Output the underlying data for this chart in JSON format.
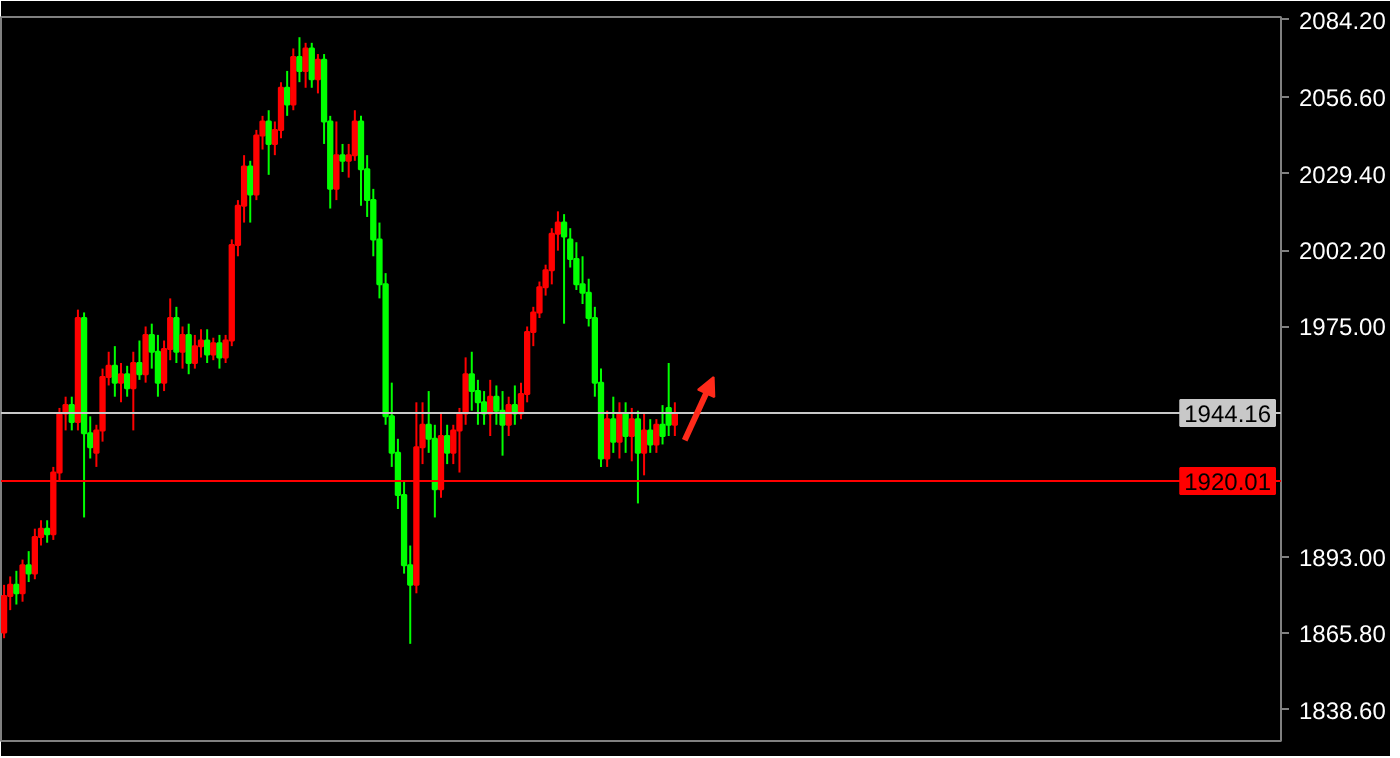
{
  "chart_data": {
    "type": "candlestick",
    "categories": [
      null,
      null,
      null,
      null,
      null,
      null,
      null,
      null,
      null,
      null,
      null,
      null,
      null,
      null,
      null,
      null,
      null,
      null,
      null,
      null,
      null,
      null,
      null,
      null,
      null,
      null,
      null,
      null,
      null,
      null,
      null,
      null,
      null,
      null,
      null,
      null,
      null,
      null,
      null,
      null,
      null,
      null,
      null,
      null,
      null,
      null,
      null,
      null,
      null,
      null,
      null,
      null,
      null,
      null,
      null,
      null,
      null,
      null,
      null,
      null,
      null,
      null,
      null,
      null,
      null,
      null,
      null,
      null,
      null,
      null,
      null,
      null,
      null,
      null,
      null,
      null,
      null,
      null,
      null,
      null,
      null,
      null,
      null,
      null,
      null,
      null,
      null,
      null,
      null,
      null,
      null,
      null,
      null,
      null,
      null,
      null,
      null,
      null,
      null,
      null,
      null,
      null,
      null,
      null,
      null,
      null,
      null,
      null,
      null,
      null,
      null,
      null,
      null,
      null,
      null,
      null,
      null,
      null,
      null,
      null,
      null,
      null,
      null,
      null,
      null,
      null,
      null,
      null,
      null,
      null,
      null,
      null,
      null,
      null,
      null,
      null,
      null,
      null,
      null,
      null,
      null,
      null,
      null,
      null,
      null,
      null,
      null,
      null,
      null,
      null,
      null,
      null,
      null,
      null,
      null,
      null,
      null,
      null,
      null,
      null,
      null,
      null,
      null,
      null,
      null,
      null,
      null,
      null,
      null,
      null,
      null,
      null,
      null,
      null,
      null,
      null,
      null,
      null,
      null,
      null,
      null,
      null,
      null,
      null,
      null,
      null,
      null,
      null,
      null,
      null,
      null,
      null,
      null,
      null,
      null,
      null,
      null,
      null,
      null,
      null,
      null,
      null,
      null,
      null,
      null,
      null,
      null,
      null
    ],
    "ohlc": [
      [
        1866,
        1883,
        1864,
        1879
      ],
      [
        1879,
        1886,
        1874,
        1883
      ],
      [
        1883,
        1888,
        1876,
        1880
      ],
      [
        1880,
        1892,
        1877,
        1890
      ],
      [
        1890,
        1895,
        1884,
        1887
      ],
      [
        1887,
        1903,
        1885,
        1900
      ],
      [
        1900,
        1906,
        1897,
        1903
      ],
      [
        1903,
        1906,
        1898,
        1901
      ],
      [
        1901,
        1925,
        1899,
        1923
      ],
      [
        1923,
        1946,
        1920,
        1944
      ],
      [
        1944,
        1950,
        1938,
        1947
      ],
      [
        1947,
        1950,
        1938,
        1941
      ],
      [
        1941,
        1981,
        1938,
        1978
      ],
      [
        1978,
        1980,
        1907,
        1937
      ],
      [
        1937,
        1943,
        1928,
        1932
      ],
      [
        1930,
        1940,
        1925,
        1938
      ],
      [
        1938,
        1960,
        1934,
        1957
      ],
      [
        1957,
        1966,
        1954,
        1961
      ],
      [
        1961,
        1968,
        1950,
        1955
      ],
      [
        1955,
        1962,
        1948,
        1958
      ],
      [
        1958,
        1961,
        1950,
        1953
      ],
      [
        1953,
        1966,
        1938,
        1962
      ],
      [
        1962,
        1970,
        1956,
        1958
      ],
      [
        1958,
        1975,
        1955,
        1972
      ],
      [
        1972,
        1976,
        1960,
        1966
      ],
      [
        1966,
        1972,
        1950,
        1955
      ],
      [
        1955,
        1970,
        1952,
        1967
      ],
      [
        1967,
        1985,
        1963,
        1978
      ],
      [
        1978,
        1982,
        1962,
        1966
      ],
      [
        1966,
        1975,
        1960,
        1972
      ],
      [
        1972,
        1976,
        1958,
        1962
      ],
      [
        1962,
        1972,
        1960,
        1968
      ],
      [
        1968,
        1974,
        1964,
        1970
      ],
      [
        1970,
        1974,
        1962,
        1965
      ],
      [
        1965,
        1971,
        1963,
        1969
      ],
      [
        1969,
        1972,
        1960,
        1964
      ],
      [
        1964,
        1972,
        1962,
        1970
      ],
      [
        1970,
        2006,
        1968,
        2004
      ],
      [
        2004,
        2020,
        2000,
        2018
      ],
      [
        2018,
        2036,
        2012,
        2032
      ],
      [
        2032,
        2034,
        2012,
        2022
      ],
      [
        2022,
        2045,
        2020,
        2043
      ],
      [
        2043,
        2050,
        2038,
        2048
      ],
      [
        2048,
        2052,
        2029,
        2040
      ],
      [
        2040,
        2048,
        2036,
        2045
      ],
      [
        2045,
        2062,
        2042,
        2060
      ],
      [
        2060,
        2066,
        2050,
        2054
      ],
      [
        2054,
        2074,
        2052,
        2071
      ],
      [
        2071,
        2078,
        2062,
        2066
      ],
      [
        2066,
        2076,
        2060,
        2074
      ],
      [
        2074,
        2076,
        2060,
        2063
      ],
      [
        2063,
        2072,
        2058,
        2070
      ],
      [
        2070,
        2072,
        2040,
        2048
      ],
      [
        2048,
        2050,
        2017,
        2024
      ],
      [
        2024,
        2048,
        2020,
        2036
      ],
      [
        2036,
        2040,
        2030,
        2034
      ],
      [
        2034,
        2040,
        2028,
        2036
      ],
      [
        2036,
        2052,
        2034,
        2048
      ],
      [
        2048,
        2050,
        2018,
        2031
      ],
      [
        2031,
        2036,
        2014,
        2020
      ],
      [
        2020,
        2024,
        2000,
        2006
      ],
      [
        2006,
        2012,
        1985,
        1990
      ],
      [
        1990,
        1994,
        1940,
        1943
      ],
      [
        1943,
        1955,
        1925,
        1930
      ],
      [
        1930,
        1935,
        1910,
        1915
      ],
      [
        1915,
        1920,
        1887,
        1890
      ],
      [
        1890,
        1897,
        1862,
        1883
      ],
      [
        1883,
        1948,
        1880,
        1932
      ],
      [
        1932,
        1948,
        1926,
        1940
      ],
      [
        1940,
        1952,
        1930,
        1935
      ],
      [
        1935,
        1940,
        1907,
        1917
      ],
      [
        1917,
        1944,
        1914,
        1936
      ],
      [
        1936,
        1940,
        1926,
        1930
      ],
      [
        1930,
        1940,
        1926,
        1938
      ],
      [
        1938,
        1946,
        1923,
        1944
      ],
      [
        1944,
        1964,
        1940,
        1958
      ],
      [
        1958,
        1966,
        1945,
        1952
      ],
      [
        1952,
        1956,
        1940,
        1948
      ],
      [
        1948,
        1952,
        1940,
        1944
      ],
      [
        1944,
        1956,
        1936,
        1950
      ],
      [
        1950,
        1954,
        1940,
        1945
      ],
      [
        1945,
        1952,
        1929,
        1940
      ],
      [
        1940,
        1950,
        1936,
        1947
      ],
      [
        1947,
        1954,
        1940,
        1944
      ],
      [
        1944,
        1955,
        1942,
        1951
      ],
      [
        1951,
        1975,
        1948,
        1973
      ],
      [
        1973,
        1982,
        1968,
        1980
      ],
      [
        1980,
        1991,
        1978,
        1989
      ],
      [
        1989,
        1997,
        1986,
        1995
      ],
      [
        1995,
        2010,
        1990,
        2008
      ],
      [
        2008,
        2016,
        2002,
        2012
      ],
      [
        2012,
        2015,
        1976,
        2007
      ],
      [
        2006,
        2010,
        1996,
        1999
      ],
      [
        1999,
        2005,
        1988,
        1990
      ],
      [
        1990,
        2000,
        1983,
        1987
      ],
      [
        1987,
        1992,
        1975,
        1978
      ],
      [
        1978,
        1982,
        1950,
        1955
      ],
      [
        1955,
        1960,
        1925,
        1928
      ],
      [
        1928,
        1945,
        1925,
        1942
      ],
      [
        1942,
        1950,
        1930,
        1934
      ],
      [
        1934,
        1948,
        1928,
        1944
      ],
      [
        1944,
        1948,
        1930,
        1936
      ],
      [
        1936,
        1946,
        1927,
        1942
      ],
      [
        1942,
        1945,
        1912,
        1930
      ],
      [
        1930,
        1944,
        1922,
        1938
      ],
      [
        1938,
        1942,
        1930,
        1933
      ],
      [
        1933,
        1942,
        1930,
        1940
      ],
      [
        1940,
        1947,
        1933,
        1936
      ],
      [
        1946,
        1962,
        1936,
        1940
      ],
      [
        1940,
        1948,
        1936,
        1944.16
      ],
      null,
      null,
      null,
      null,
      null,
      null,
      null,
      null,
      null,
      null,
      null,
      null,
      null,
      null,
      null,
      null,
      null,
      null,
      null,
      null,
      null,
      null,
      null,
      null,
      null,
      null,
      null,
      null,
      null,
      null,
      null,
      null,
      null,
      null,
      null,
      null,
      null,
      null,
      null,
      null,
      null,
      null,
      null,
      null,
      null,
      null,
      null,
      null,
      null,
      null,
      null,
      null,
      null,
      null,
      null,
      null,
      null,
      null,
      null,
      null,
      null,
      null,
      null,
      null,
      null,
      null,
      null,
      null,
      null,
      null,
      null,
      null,
      null,
      null,
      null,
      null,
      null,
      null,
      null,
      null,
      null,
      null,
      null,
      null,
      null,
      null,
      null,
      null,
      null,
      null,
      null,
      null,
      null,
      null,
      null,
      null,
      null,
      null
    ],
    "colors": [
      "#ff0000",
      "#ff0000",
      "#00ff00",
      "#ff0000",
      "#00ff00",
      "#ff0000",
      "#ff0000",
      "#00ff00",
      "#ff0000",
      "#ff0000",
      "#ff0000",
      "#00ff00",
      "#ff0000",
      "#00ff00",
      "#00ff00",
      "#ff0000",
      "#ff0000",
      "#ff0000",
      "#00ff00",
      "#ff0000",
      "#00ff00",
      "#ff0000",
      "#00ff00",
      "#ff0000",
      "#00ff00",
      "#00ff00",
      "#ff0000",
      "#ff0000",
      "#00ff00",
      "#ff0000",
      "#00ff00",
      "#ff0000",
      "#ff0000",
      "#00ff00",
      "#ff0000",
      "#00ff00",
      "#ff0000",
      "#ff0000",
      "#ff0000",
      "#ff0000",
      "#00ff00",
      "#ff0000",
      "#ff0000",
      "#00ff00",
      "#ff0000",
      "#ff0000",
      "#00ff00",
      "#ff0000",
      "#00ff00",
      "#ff0000",
      "#00ff00",
      "#ff0000",
      "#00ff00",
      "#00ff00",
      "#ff0000",
      "#00ff00",
      "#ff0000",
      "#ff0000",
      "#00ff00",
      "#00ff00",
      "#00ff00",
      "#00ff00",
      "#00ff00",
      "#00ff00",
      "#00ff00",
      "#00ff00",
      "#00ff00",
      "#ff0000",
      "#ff0000",
      "#00ff00",
      "#00ff00",
      "#ff0000",
      "#00ff00",
      "#ff0000",
      "#ff0000",
      "#ff0000",
      "#00ff00",
      "#00ff00",
      "#00ff00",
      "#ff0000",
      "#00ff00",
      "#00ff00",
      "#ff0000",
      "#00ff00",
      "#ff0000",
      "#ff0000",
      "#ff0000",
      "#ff0000",
      "#ff0000",
      "#ff0000",
      "#ff0000",
      "#00ff00",
      "#00ff00",
      "#00ff00",
      "#00ff00",
      "#00ff00",
      "#00ff00",
      "#00ff00",
      "#ff0000",
      "#00ff00",
      "#ff0000",
      "#00ff00",
      "#ff0000",
      "#00ff00",
      "#ff0000",
      "#00ff00",
      "#ff0000",
      "#00ff00",
      "#00ff00",
      "#ff0000",
      null,
      null,
      null,
      null,
      null,
      null,
      null,
      null,
      null,
      null,
      null,
      null,
      null,
      null,
      null,
      null,
      null,
      null,
      null,
      null,
      null,
      null,
      null,
      null,
      null,
      null,
      null,
      null,
      null,
      null,
      null,
      null,
      null,
      null,
      null,
      null,
      null,
      null,
      null,
      null,
      null,
      null,
      null,
      null,
      null,
      null,
      null,
      null,
      null,
      null,
      null,
      null,
      null,
      null,
      null,
      null,
      null,
      null,
      null,
      null,
      null,
      null,
      null,
      null,
      null,
      null,
      null,
      null,
      null,
      null,
      null,
      null,
      null,
      null,
      null,
      null,
      null,
      null,
      null,
      null,
      null,
      null,
      null,
      null,
      null,
      null,
      null,
      null,
      null,
      null,
      null,
      null,
      null,
      null,
      null,
      null,
      null,
      null
    ],
    "ylim": [
      1827.4,
      2085.2
    ],
    "yticks": [
      {
        "value": 2084.2,
        "label": "2084.20"
      },
      {
        "value": 2056.6,
        "label": "2056.60"
      },
      {
        "value": 2029.4,
        "label": "2029.40"
      },
      {
        "value": 2002.2,
        "label": "2002.20"
      },
      {
        "value": 1975,
        "label": "1975.00"
      },
      {
        "value": 1893,
        "label": "1893.00"
      },
      {
        "value": 1865.8,
        "label": "1865.80"
      },
      {
        "value": 1838.6,
        "label": "1838.60"
      }
    ],
    "ref_lines": [
      {
        "axis": "y",
        "value": 1944.16,
        "label": "1944.16",
        "color": "#c8c8c8"
      },
      {
        "axis": "y",
        "value": 1920.01,
        "label": "1920.01",
        "color": "#ff0000"
      }
    ],
    "grid": false
  }
}
